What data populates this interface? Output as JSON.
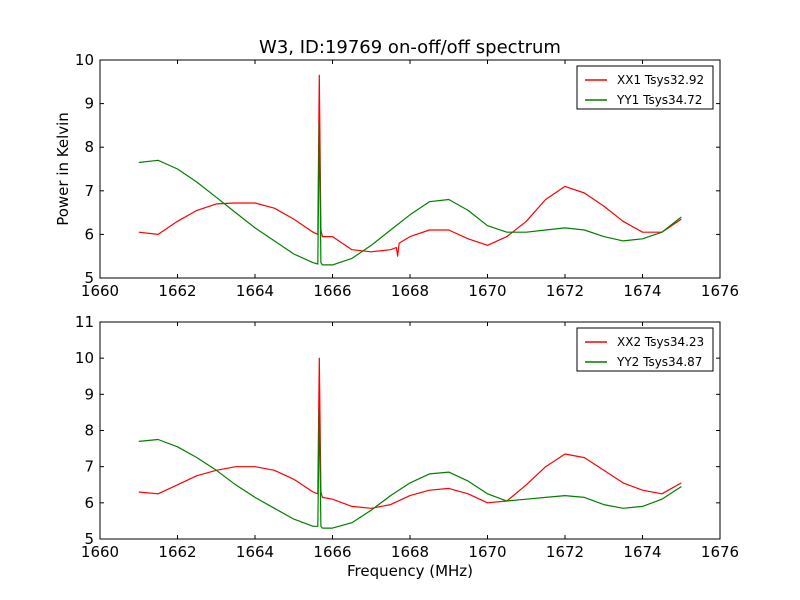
{
  "title": "W3, ID:19769 on-off/off spectrum",
  "colors": {
    "xx": "#ff0000",
    "yy": "#007f00",
    "frame": "#000000",
    "background": "#ffffff"
  },
  "chart_data": [
    {
      "type": "line",
      "ylabel": "Power in Kelvin",
      "xlabel": "",
      "xlim": [
        1660,
        1676
      ],
      "ylim": [
        5,
        10
      ],
      "xticks": [
        1660,
        1662,
        1664,
        1666,
        1668,
        1670,
        1672,
        1674,
        1676
      ],
      "yticks": [
        5,
        6,
        7,
        8,
        9,
        10
      ],
      "legend_position": "top-right",
      "grid": false,
      "series": [
        {
          "name": "XX1 Tsys32.92",
          "color": "#ff0000",
          "x": [
            1661.0,
            1661.5,
            1662.0,
            1662.5,
            1663.0,
            1663.5,
            1664.0,
            1664.5,
            1665.0,
            1665.5,
            1665.62,
            1665.66,
            1665.7,
            1665.74,
            1666.0,
            1666.5,
            1667.0,
            1667.5,
            1667.65,
            1667.68,
            1667.72,
            1668.0,
            1668.5,
            1669.0,
            1669.5,
            1670.0,
            1670.5,
            1671.0,
            1671.5,
            1672.0,
            1672.5,
            1673.0,
            1673.5,
            1674.0,
            1674.5,
            1675.0
          ],
          "y": [
            6.05,
            6.0,
            6.3,
            6.55,
            6.7,
            6.72,
            6.72,
            6.6,
            6.35,
            6.05,
            6.0,
            9.65,
            6.1,
            5.95,
            5.95,
            5.65,
            5.6,
            5.65,
            5.7,
            5.5,
            5.8,
            5.95,
            6.1,
            6.1,
            5.9,
            5.75,
            5.95,
            6.3,
            6.8,
            7.1,
            6.95,
            6.65,
            6.3,
            6.05,
            6.05,
            6.35
          ]
        },
        {
          "name": "YY1 Tsys34.72",
          "color": "#007f00",
          "x": [
            1661.0,
            1661.5,
            1662.0,
            1662.5,
            1663.0,
            1663.5,
            1664.0,
            1664.5,
            1665.0,
            1665.5,
            1665.62,
            1665.66,
            1665.7,
            1665.74,
            1666.0,
            1666.5,
            1667.0,
            1667.5,
            1668.0,
            1668.5,
            1669.0,
            1669.5,
            1670.0,
            1670.5,
            1671.0,
            1671.5,
            1672.0,
            1672.5,
            1673.0,
            1673.5,
            1674.0,
            1674.5,
            1675.0
          ],
          "y": [
            7.65,
            7.7,
            7.5,
            7.2,
            6.85,
            6.5,
            6.15,
            5.85,
            5.55,
            5.35,
            5.32,
            8.55,
            5.35,
            5.3,
            5.3,
            5.45,
            5.75,
            6.1,
            6.45,
            6.75,
            6.8,
            6.55,
            6.2,
            6.05,
            6.05,
            6.1,
            6.15,
            6.1,
            5.95,
            5.85,
            5.9,
            6.05,
            6.4
          ]
        }
      ]
    },
    {
      "type": "line",
      "ylabel": "",
      "xlabel": "Frequency (MHz)",
      "xlim": [
        1660,
        1676
      ],
      "ylim": [
        5,
        11
      ],
      "xticks": [
        1660,
        1662,
        1664,
        1666,
        1668,
        1670,
        1672,
        1674,
        1676
      ],
      "yticks": [
        5,
        6,
        7,
        8,
        9,
        10,
        11
      ],
      "legend_position": "top-right",
      "grid": false,
      "series": [
        {
          "name": "XX2 Tsys34.23",
          "color": "#ff0000",
          "x": [
            1661.0,
            1661.5,
            1662.0,
            1662.5,
            1663.0,
            1663.5,
            1664.0,
            1664.5,
            1665.0,
            1665.5,
            1665.62,
            1665.66,
            1665.7,
            1665.74,
            1666.0,
            1666.5,
            1667.0,
            1667.5,
            1668.0,
            1668.5,
            1669.0,
            1669.5,
            1670.0,
            1670.5,
            1671.0,
            1671.5,
            1672.0,
            1672.5,
            1673.0,
            1673.5,
            1674.0,
            1674.5,
            1675.0
          ],
          "y": [
            6.3,
            6.25,
            6.5,
            6.75,
            6.9,
            7.0,
            7.0,
            6.9,
            6.65,
            6.3,
            6.25,
            10.0,
            6.3,
            6.15,
            6.1,
            5.9,
            5.85,
            5.95,
            6.2,
            6.35,
            6.4,
            6.25,
            6.0,
            6.05,
            6.5,
            7.0,
            7.35,
            7.25,
            6.9,
            6.55,
            6.35,
            6.25,
            6.55
          ]
        },
        {
          "name": "YY2 Tsys34.87",
          "color": "#007f00",
          "x": [
            1661.0,
            1661.5,
            1662.0,
            1662.5,
            1663.0,
            1663.5,
            1664.0,
            1664.5,
            1665.0,
            1665.5,
            1665.62,
            1665.66,
            1665.7,
            1665.74,
            1666.0,
            1666.5,
            1667.0,
            1667.5,
            1668.0,
            1668.5,
            1669.0,
            1669.5,
            1670.0,
            1670.5,
            1671.0,
            1671.5,
            1672.0,
            1672.5,
            1673.0,
            1673.5,
            1674.0,
            1674.5,
            1675.0
          ],
          "y": [
            7.7,
            7.75,
            7.55,
            7.25,
            6.9,
            6.5,
            6.15,
            5.85,
            5.55,
            5.35,
            5.35,
            8.6,
            5.35,
            5.3,
            5.3,
            5.45,
            5.8,
            6.2,
            6.55,
            6.8,
            6.85,
            6.6,
            6.25,
            6.05,
            6.1,
            6.15,
            6.2,
            6.15,
            5.95,
            5.85,
            5.9,
            6.1,
            6.45
          ]
        }
      ]
    }
  ]
}
